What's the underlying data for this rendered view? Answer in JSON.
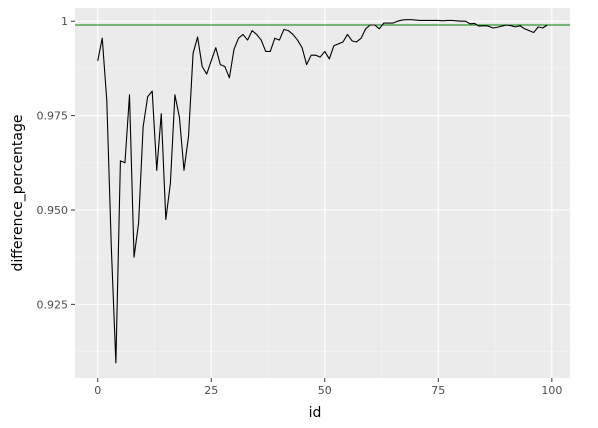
{
  "chart_data": {
    "type": "line",
    "title": "",
    "xlabel": "id",
    "ylabel": "difference_percentage",
    "xlim": [
      -5,
      104
    ],
    "ylim": [
      0.9055,
      1.0035
    ],
    "x_ticks": [
      0,
      25,
      50,
      75,
      100
    ],
    "x_tick_labels": [
      "0",
      "25",
      "50",
      "75",
      "100"
    ],
    "y_ticks": [
      0.925,
      0.95,
      0.975,
      1.0
    ],
    "y_tick_labels": [
      "0.925",
      "0.950",
      "0.975",
      "1"
    ],
    "grid": true,
    "background": "#ebebeb",
    "line_color": "#000000",
    "reference_line": {
      "y": 0.999,
      "color": "#008000"
    },
    "series": [
      {
        "x": [
          0,
          1,
          2,
          3,
          4,
          5,
          6,
          7,
          8,
          9,
          10,
          11,
          12,
          13,
          14,
          15,
          16,
          17,
          18,
          19,
          20,
          21,
          22,
          23,
          24,
          25,
          26,
          27,
          28,
          29,
          30,
          31,
          32,
          33,
          34,
          35,
          36,
          37,
          38,
          39,
          40,
          41,
          42,
          43,
          44,
          45,
          46,
          47,
          48,
          49,
          50,
          51,
          52,
          53,
          54,
          55,
          56,
          57,
          58,
          59,
          60,
          61,
          62,
          63,
          64,
          65,
          66,
          67,
          68,
          69,
          70,
          71,
          72,
          73,
          74,
          75,
          76,
          77,
          78,
          79,
          80,
          81,
          82,
          83,
          84,
          85,
          86,
          87,
          88,
          89,
          90,
          91,
          92,
          93,
          94,
          95,
          96,
          97,
          98,
          99
        ],
        "values": [
          0.9895,
          0.9955,
          0.979,
          0.94,
          0.9095,
          0.963,
          0.9625,
          0.9805,
          0.9375,
          0.9465,
          0.972,
          0.98,
          0.9815,
          0.9605,
          0.9755,
          0.9475,
          0.957,
          0.9805,
          0.9745,
          0.9605,
          0.9695,
          0.9915,
          0.9958,
          0.988,
          0.986,
          0.9895,
          0.993,
          0.9885,
          0.988,
          0.985,
          0.9925,
          0.9955,
          0.9965,
          0.995,
          0.9975,
          0.9965,
          0.995,
          0.992,
          0.992,
          0.9955,
          0.995,
          0.9978,
          0.9975,
          0.9965,
          0.995,
          0.993,
          0.9885,
          0.991,
          0.991,
          0.9905,
          0.992,
          0.99,
          0.9935,
          0.994,
          0.9945,
          0.9965,
          0.9948,
          0.9945,
          0.9955,
          0.998,
          0.999,
          0.999,
          0.998,
          0.9995,
          0.9995,
          0.9995,
          1.0,
          1.0003,
          1.0004,
          1.0004,
          1.0003,
          1.0002,
          1.0002,
          1.0002,
          1.0002,
          1.0002,
          1.0001,
          1.0002,
          1.0002,
          1.0001,
          1.0,
          1.0,
          0.9993,
          0.9994,
          0.9987,
          0.9988,
          0.9987,
          0.9982,
          0.9984,
          0.9987,
          0.999,
          0.9988,
          0.9985,
          0.9988,
          0.998,
          0.9975,
          0.997,
          0.9985,
          0.9982,
          0.999
        ]
      }
    ]
  }
}
